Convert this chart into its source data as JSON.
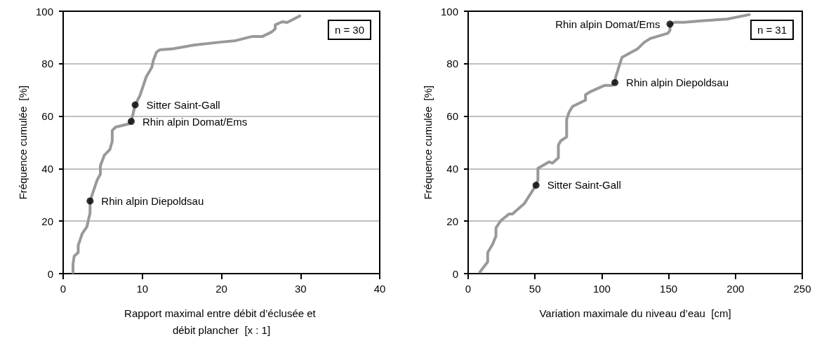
{
  "chart_data": [
    {
      "type": "line",
      "xlabel": "Rapport maximal entre débit d’éclusée et débit plancher  [x : 1]",
      "ylabel": "Fréquence cumulée  [%]",
      "xlim": [
        0,
        40
      ],
      "xticks": [
        0,
        10,
        20,
        30,
        40
      ],
      "ylim": [
        0,
        100
      ],
      "yticks": [
        0,
        20,
        40,
        60,
        80,
        100
      ],
      "grid": "y",
      "marker": "none",
      "series": [
        {
          "color": "#999999",
          "x": [
            1.24,
            1.24,
            1.4,
            1.9,
            1.9,
            2.4,
            3.0,
            3.4,
            3.4,
            4.3,
            4.7,
            4.7,
            5.2,
            5.9,
            6.2,
            6.2,
            6.6,
            8.3,
            8.6,
            9.1,
            9.7,
            10.5,
            11.2,
            11.4,
            11.8,
            12.2,
            13.9,
            16.5,
            19.8,
            21.8,
            23.9,
            25.2,
            26.3,
            26.8,
            26.8,
            27.7,
            28.3,
            29.9
          ],
          "values": [
            0.4,
            3.6,
            6.7,
            8.0,
            10.7,
            15.2,
            17.9,
            23.2,
            27.7,
            35.7,
            37.9,
            41.1,
            45.1,
            47.3,
            50.4,
            54.5,
            55.8,
            57.1,
            58.0,
            64.3,
            67.9,
            75.0,
            78.6,
            81.3,
            84.4,
            85.3,
            85.7,
            87.1,
            88.2,
            88.8,
            90.4,
            90.4,
            92.0,
            93.3,
            94.8,
            96.0,
            95.7,
            98.2
          ]
        },
        {
          "type": "scatter",
          "color": "#000000",
          "marker": "circle",
          "x": [
            3.4,
            8.6,
            9.1
          ],
          "values": [
            27.7,
            58.0,
            64.3
          ]
        }
      ],
      "annotations": [
        "n = 30",
        {
          "text": "Rhin alpin Diepoldsau",
          "x": 3.4,
          "y": 27.7
        },
        {
          "text": "Rhin alpin Domat/Ems",
          "x": 8.6,
          "y": 58.0
        },
        {
          "text": "Sitter Saint-Gall",
          "x": 9.1,
          "y": 64.3
        }
      ]
    },
    {
      "type": "line",
      "xlabel": "Variation maximale du niveau d’eau  [cm]",
      "ylabel": "Fréquence cumulée  [%]",
      "xlim": [
        0,
        250
      ],
      "xticks": [
        0,
        50,
        100,
        150,
        200,
        250
      ],
      "ylim": [
        0,
        100
      ],
      "yticks": [
        0,
        20,
        40,
        60,
        80,
        100
      ],
      "grid": "y",
      "marker": "none",
      "series": [
        {
          "color": "#999999",
          "x": [
            8.8,
            14.6,
            14.6,
            18.2,
            20.8,
            20.8,
            24.3,
            30.5,
            33.1,
            42.0,
            50.8,
            52.2,
            52.2,
            60.5,
            63.1,
            67.5,
            67.5,
            69.3,
            73.7,
            73.7,
            75.5,
            78.1,
            87.8,
            87.8,
            92.2,
            101.9,
            107.5,
            109.8,
            110.4,
            113.4,
            115.1,
            126.6,
            131.9,
            136.3,
            149.5,
            151.0,
            151.0,
            154.8,
            161.8,
            174.2,
            193.6,
            210.3
          ],
          "values": [
            0.6,
            4.5,
            8.0,
            11.1,
            14.3,
            17.4,
            20.1,
            22.7,
            22.7,
            26.7,
            33.7,
            35.7,
            40.1,
            42.6,
            42.1,
            44.1,
            49.0,
            50.6,
            52.1,
            58.8,
            61.5,
            63.7,
            66.1,
            68.2,
            69.5,
            71.7,
            71.7,
            72.8,
            74.9,
            79.8,
            82.4,
            85.6,
            88.2,
            89.6,
            91.6,
            92.7,
            95.1,
            95.8,
            95.8,
            96.3,
            97.0,
            98.7
          ]
        },
        {
          "type": "scatter",
          "color": "#000000",
          "marker": "circle",
          "x": [
            50.8,
            109.8,
            151.0
          ],
          "values": [
            33.7,
            72.8,
            95.1
          ]
        }
      ],
      "annotations": [
        "n = 31",
        {
          "text": "Sitter Saint-Gall",
          "x": 50.8,
          "y": 33.7
        },
        {
          "text": "Rhin alpin Diepoldsau",
          "x": 109.8,
          "y": 72.8
        },
        {
          "text": "Rhin alpin Domat/Ems",
          "x": 151.0,
          "y": 95.1
        }
      ]
    }
  ]
}
